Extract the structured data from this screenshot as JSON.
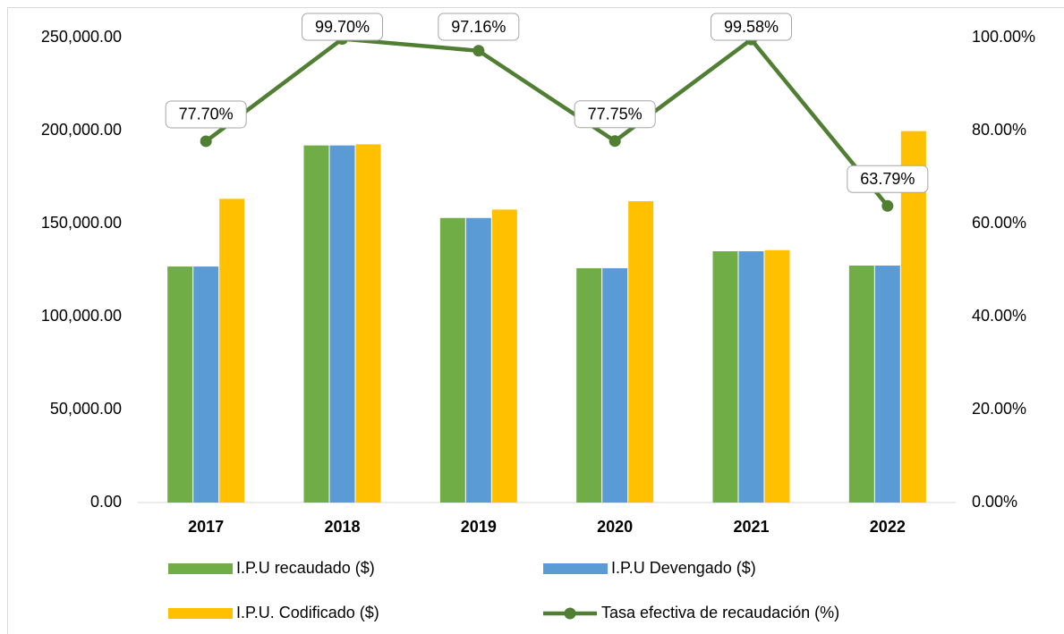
{
  "chart_data": {
    "type": "bar_line",
    "categories": [
      "2017",
      "2018",
      "2019",
      "2020",
      "2021",
      "2022"
    ],
    "series": [
      {
        "name": "I.P.U recaudado ($)",
        "color": "#70ad47",
        "type": "bar",
        "values": [
          126900,
          192000,
          153000,
          126000,
          135100,
          127400
        ]
      },
      {
        "name": "I.P.U Devengado ($)",
        "color": "#5b9bd5",
        "type": "bar",
        "values": [
          126900,
          192000,
          153000,
          126000,
          135100,
          127400
        ]
      },
      {
        "name": "I.P.U. Codificado ($)",
        "color": "#ffc000",
        "type": "bar",
        "values": [
          163300,
          192600,
          157500,
          162000,
          135700,
          199700
        ]
      },
      {
        "name": "Tasa efectiva de recaudación (%)",
        "color": "#507e32",
        "type": "line",
        "axis": "y2",
        "values": [
          77.7,
          99.7,
          97.16,
          77.75,
          99.58,
          63.79
        ],
        "value_labels": [
          "77.70%",
          "99.70%",
          "97.16%",
          "77.75%",
          "99.58%",
          "63.79%"
        ]
      }
    ],
    "ylim": [
      0,
      250000
    ],
    "yticks": [
      {
        "value": 0,
        "label": "0.00"
      },
      {
        "value": 50000,
        "label": "50,000.00"
      },
      {
        "value": 100000,
        "label": "100,000.00"
      },
      {
        "value": 150000,
        "label": "150,000.00"
      },
      {
        "value": 200000,
        "label": "200,000.00"
      },
      {
        "value": 250000,
        "label": "250,000.00"
      }
    ],
    "y2lim": [
      0,
      100
    ],
    "y2ticks": [
      {
        "value": 0,
        "label": "0.00%"
      },
      {
        "value": 20,
        "label": "20.00%"
      },
      {
        "value": 40,
        "label": "40.00%"
      },
      {
        "value": 60,
        "label": "60.00%"
      },
      {
        "value": 80,
        "label": "80.00%"
      },
      {
        "value": 100,
        "label": "100.00%"
      }
    ],
    "grid": false,
    "legend": "bottom"
  }
}
